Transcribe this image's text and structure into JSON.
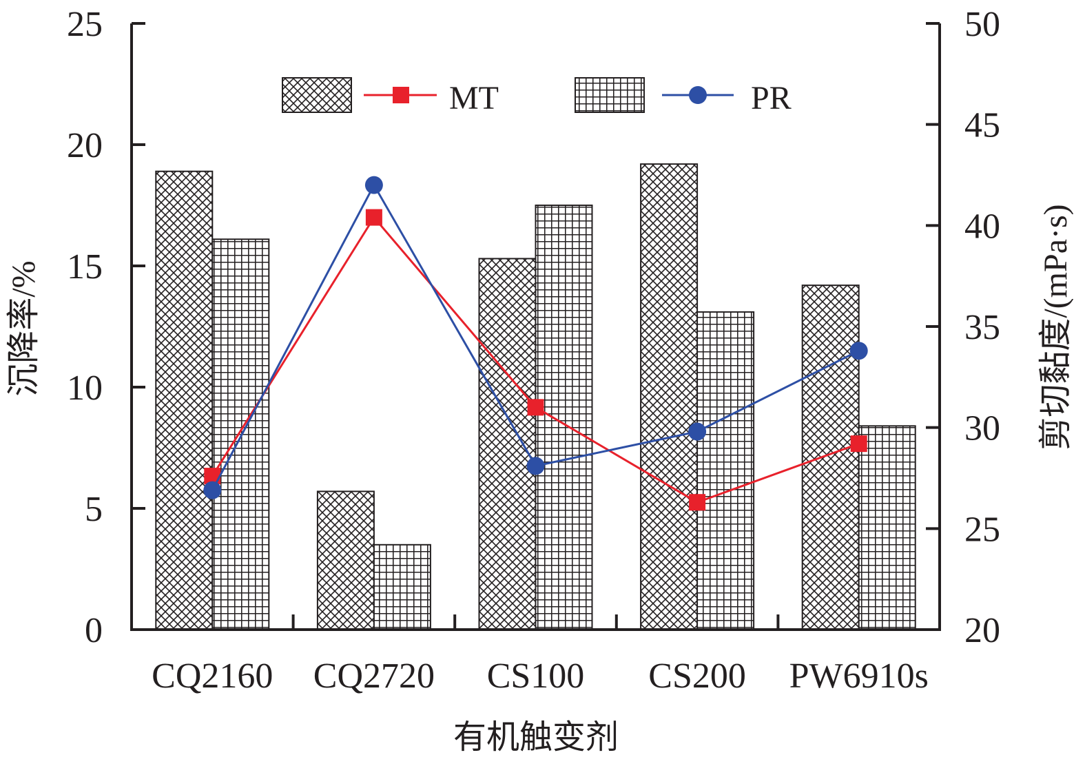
{
  "chart_data": {
    "type": "bar",
    "categories": [
      "CQ2160",
      "CQ2720",
      "CS100",
      "CS200",
      "PW6910s"
    ],
    "bar_series": [
      {
        "values": [
          18.9,
          5.7,
          15.3,
          19.2,
          14.2
        ],
        "pattern": "diagonal-crosshatch"
      },
      {
        "values": [
          16.1,
          3.5,
          17.5,
          13.1,
          8.4
        ],
        "pattern": "square-grid"
      }
    ],
    "line_series": [
      {
        "name": "MT",
        "values": [
          27.6,
          40.4,
          31.0,
          26.3,
          29.2
        ],
        "color": "#e8212b",
        "marker": "square"
      },
      {
        "name": "PR",
        "values": [
          26.9,
          42.0,
          28.1,
          29.8,
          33.8
        ],
        "color": "#2d4fa5",
        "marker": "circle"
      }
    ],
    "xlabel": "有机触变剂",
    "ylabel_left": "沉降率/%",
    "ylabel_right": "剪切黏度/(mPa·s)",
    "ylim_left": [
      0,
      25
    ],
    "yticks_left": [
      0,
      5,
      10,
      15,
      20,
      25
    ],
    "ylim_right": [
      20,
      50
    ],
    "yticks_right": [
      20,
      25,
      30,
      35,
      40,
      45,
      50
    ],
    "legend_position": "top",
    "grid": false
  }
}
